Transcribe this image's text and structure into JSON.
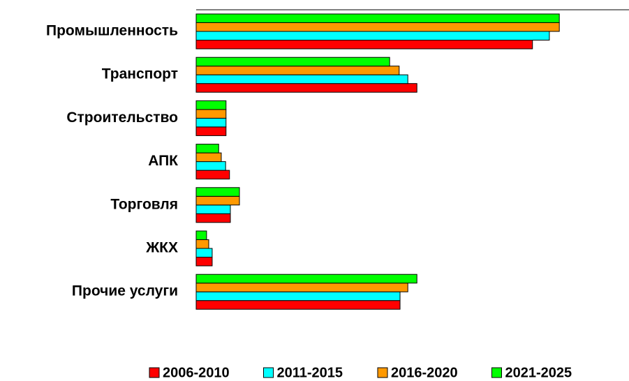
{
  "chart_data": {
    "type": "bar",
    "orientation": "horizontal",
    "categories": [
      "Промышленность",
      "Транспорт",
      "Строительство",
      "АПК",
      "Торговля",
      "ЖКХ",
      "Прочие услуги"
    ],
    "series": [
      {
        "name": "2006-2010",
        "color": "#ff0000",
        "values": [
          77.7,
          51,
          6.9,
          7.7,
          7.9,
          3.7,
          47.1
        ]
      },
      {
        "name": "2011-2015",
        "color": "#00ffff",
        "values": [
          81.6,
          48.9,
          6.9,
          6.8,
          7.9,
          3.7,
          47.1
        ]
      },
      {
        "name": "2016-2020",
        "color": "#ff9900",
        "values": [
          83.9,
          46.9,
          6.9,
          5.8,
          10,
          2.9,
          48.9
        ]
      },
      {
        "name": "2021-2025",
        "color": "#00ff00",
        "values": [
          83.9,
          44.7,
          6.9,
          5.2,
          10,
          2.4,
          51
        ]
      }
    ],
    "xlim": [
      0,
      100
    ],
    "legend": "bottom"
  }
}
